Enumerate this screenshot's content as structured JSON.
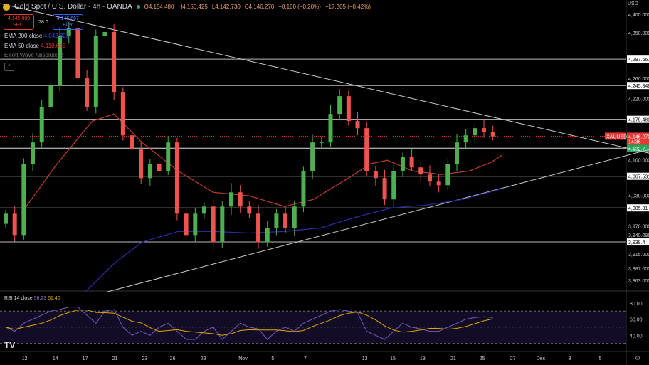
{
  "header": {
    "symbol": "Gold Spot / U.S. Dollar - 4h - OANDA",
    "open": "O4,154.480",
    "high": "H4,156.425",
    "low": "L4,142.730",
    "close": "C4,146.270",
    "change": "−8.180 (−0.20%)",
    "change2": "−17.305 (−0.42%)"
  },
  "trade": {
    "sell_price": "4,145.889",
    "sell_label": "SELL",
    "spread": "78.0",
    "buy_price": "4,146.667",
    "buy_label": "BUY"
  },
  "indicators": {
    "ema200_label": "EMA 200 close",
    "ema200_value": "4,042.823",
    "ema50_label": "EMA 50 close",
    "ema50_value": "4,110.645",
    "elliott_label": "Elliott Wave Absolute",
    "rsi_label": "RSI 14 close",
    "rsi_value": "56.23",
    "rsi_signal": "61.40",
    "collapse": "^"
  },
  "axis": {
    "currency": "USD",
    "logo": "TV"
  },
  "colors": {
    "up": "#4caf50",
    "down": "#ef5350",
    "ema50": "#b23a2e",
    "ema200": "#2a2a9a",
    "rsi": "#7e57c2",
    "rsi_signal": "#e0a800",
    "green": "#26a65b",
    "red": "#e53935"
  },
  "chart_data": {
    "type": "candlestick",
    "title": "Gold Spot / U.S. Dollar - 4h - OANDA",
    "ylim": [
      3846,
      4413
    ],
    "closes": [
      3994,
      3952,
      4092,
      4134,
      4204,
      4246,
      4344,
      4358,
      4260,
      4204,
      4344,
      4351,
      4232,
      4148,
      4120,
      4064,
      4092,
      4078,
      4134,
      3994,
      3952,
      3994,
      4008,
      3938,
      4008,
      4036,
      4008,
      3994,
      3938,
      3966,
      3994,
      3966,
      4008,
      4078,
      4134,
      4134,
      4190,
      4225,
      4176,
      4162,
      4078,
      4064,
      4022,
      4078,
      4106,
      4085,
      4071,
      4057,
      4050,
      4092,
      4134,
      4148,
      4162,
      4155,
      4146
    ],
    "ema50": [
      [
        1.7,
        3994
      ],
      [
        5.7,
        4092
      ],
      [
        9.6,
        4176
      ],
      [
        12,
        4190
      ],
      [
        15.1,
        4134
      ],
      [
        19.1,
        4078
      ],
      [
        23,
        4036
      ],
      [
        27,
        4029
      ],
      [
        30.9,
        4008
      ],
      [
        34.1,
        4022
      ],
      [
        38,
        4064
      ],
      [
        40.4,
        4092
      ],
      [
        42.3,
        4099
      ],
      [
        45.1,
        4078
      ],
      [
        48.3,
        4071
      ],
      [
        51.4,
        4078
      ],
      [
        53.8,
        4095
      ],
      [
        55,
        4109
      ]
    ],
    "ema200": [
      [
        8.8,
        3840
      ],
      [
        12,
        3896
      ],
      [
        15.1,
        3938
      ],
      [
        19.1,
        3959
      ],
      [
        23,
        3959
      ],
      [
        27,
        3956
      ],
      [
        30.9,
        3959
      ],
      [
        34.9,
        3966
      ],
      [
        38.8,
        3987
      ],
      [
        42.7,
        4005
      ],
      [
        46.7,
        4011
      ],
      [
        50.6,
        4022
      ],
      [
        55,
        4043
      ]
    ],
    "trendlines": [
      [
        [
          -0.6,
          4407
        ],
        [
          71.3,
          4113
        ]
      ],
      [
        [
          11.2,
          3840
        ],
        [
          71.3,
          4120
        ]
      ]
    ],
    "levels": [
      {
        "price": 4297.667,
        "label": "4,297.667"
      },
      {
        "price": 4245.848,
        "label": "4,245.848"
      },
      {
        "price": 4179.489,
        "label": "4,179.489"
      },
      {
        "price": 4067.531,
        "label": "4,067.531"
      },
      {
        "price": 4005.31,
        "label": "4,005.31"
      },
      {
        "price": 3938.4,
        "label": "3,938.4"
      }
    ],
    "last_price": {
      "price": 4146.27,
      "label": "4,146.270",
      "countdown": "14:36",
      "symbol": "XAUUSD"
    },
    "green_level": {
      "price": 4122.7,
      "label": "4,122.7"
    },
    "y_ticks": [
      {
        "price": 4400,
        "label": "4,400.000"
      },
      {
        "price": 4350,
        "label": "4,350.000"
      },
      {
        "price": 4260,
        "label": "4,260.000"
      },
      {
        "price": 4220,
        "label": "4,220.000"
      },
      {
        "price": 4100,
        "label": "4,100.000"
      },
      {
        "price": 4030,
        "label": "4,030.000"
      },
      {
        "price": 3970,
        "label": "3,970.000"
      },
      {
        "price": 3940,
        "label": "3,940.096"
      },
      {
        "price": 3915,
        "label": "3,915.000"
      },
      {
        "price": 3887,
        "label": "3,887.000"
      },
      {
        "price": 3863,
        "label": "3,863.000"
      }
    ],
    "x_ticks": [
      {
        "t": 2.1,
        "label": "12"
      },
      {
        "t": 5.5,
        "label": "14"
      },
      {
        "t": 8.8,
        "label": "17"
      },
      {
        "t": 12.1,
        "label": "21"
      },
      {
        "t": 15.4,
        "label": "23"
      },
      {
        "t": 18.5,
        "label": "26"
      },
      {
        "t": 21.9,
        "label": "29"
      },
      {
        "t": 26.3,
        "label": "Nov"
      },
      {
        "t": 29.6,
        "label": "5"
      },
      {
        "t": 33.2,
        "label": "7"
      },
      {
        "t": 39.8,
        "label": "13"
      },
      {
        "t": 42.9,
        "label": "15"
      },
      {
        "t": 46.2,
        "label": "19"
      },
      {
        "t": 49.6,
        "label": "21"
      },
      {
        "t": 52.8,
        "label": "25"
      },
      {
        "t": 56.2,
        "label": "27"
      },
      {
        "t": 59.3,
        "label": "Dec"
      },
      {
        "t": 62.5,
        "label": "3"
      },
      {
        "t": 65.9,
        "label": "5"
      }
    ],
    "rsi": {
      "values": [
        50,
        45,
        55,
        60,
        65,
        70,
        72,
        75,
        75,
        65,
        55,
        70,
        72,
        50,
        40,
        45,
        40,
        50,
        55,
        45,
        35,
        35,
        45,
        50,
        35,
        45,
        55,
        50,
        48,
        35,
        45,
        50,
        45,
        55,
        60,
        65,
        70,
        72,
        70,
        68,
        45,
        40,
        35,
        45,
        55,
        50,
        48,
        45,
        45,
        50,
        55,
        60,
        62,
        63,
        62
      ],
      "ylim": [
        20,
        94
      ],
      "bands": [
        70,
        30
      ],
      "ticks": [
        {
          "v": 80,
          "label": "80.00"
        },
        {
          "v": 60,
          "label": "60.00"
        },
        {
          "v": 40,
          "label": "40.00"
        }
      ]
    }
  }
}
